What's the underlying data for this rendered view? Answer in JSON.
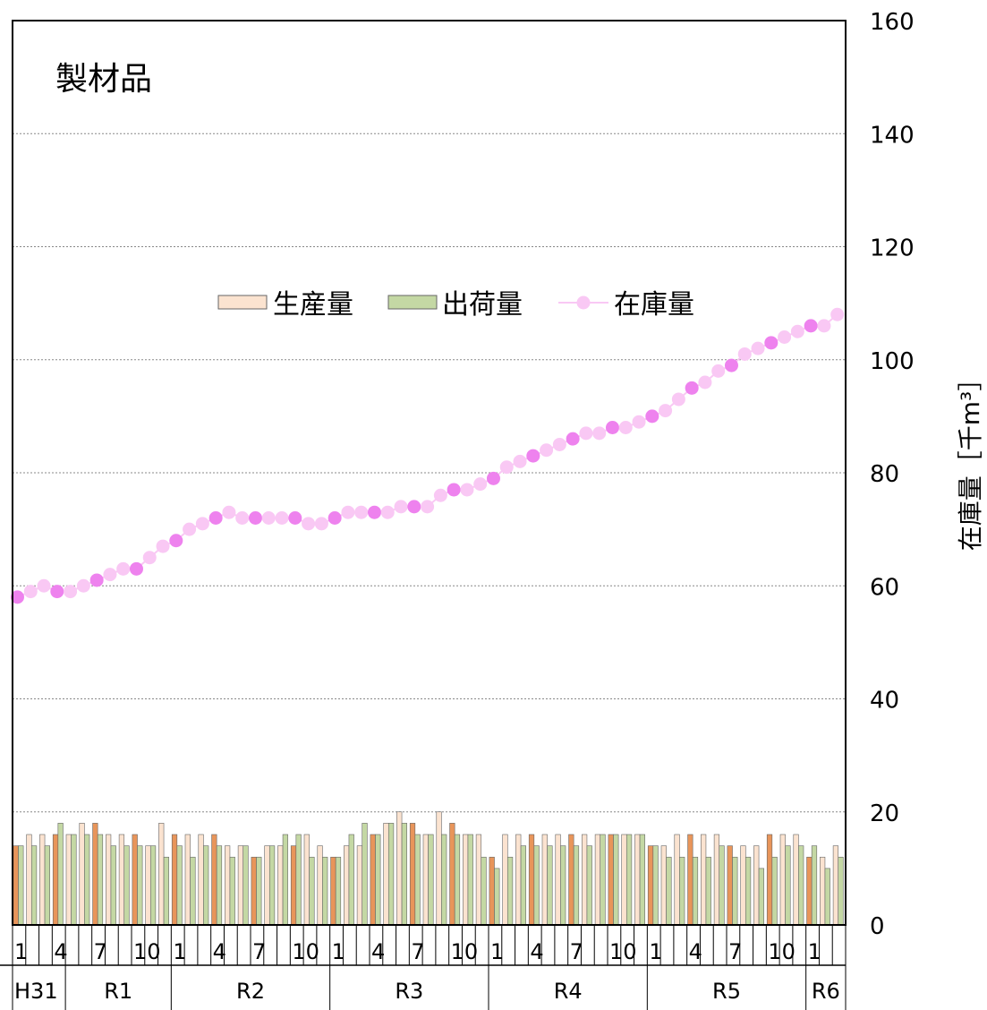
{
  "chart_data": {
    "type": "bar",
    "title": "製材品",
    "ylabel": "在庫量［千m³］",
    "ylim": [
      0,
      160
    ],
    "yticks": [
      "0",
      "20",
      "40",
      "60",
      "80",
      "100",
      "120",
      "140",
      "160"
    ],
    "grid": true,
    "legend_position": "center",
    "month_ticks": [
      "1",
      "4",
      "7",
      "10"
    ],
    "eras": [
      {
        "label": "H31",
        "months": 4
      },
      {
        "label": "R1",
        "months": 8
      },
      {
        "label": "R2",
        "months": 12
      },
      {
        "label": "R3",
        "months": 12
      },
      {
        "label": "R4",
        "months": 12
      },
      {
        "label": "R5",
        "months": 12
      },
      {
        "label": "R6",
        "months": 3
      }
    ],
    "series": [
      {
        "name": "生産量",
        "type": "bar",
        "values": [
          14,
          16,
          16,
          16,
          16,
          18,
          18,
          16,
          16,
          16,
          14,
          18,
          16,
          16,
          16,
          16,
          14,
          14,
          12,
          14,
          14,
          14,
          16,
          14,
          12,
          14,
          14,
          16,
          18,
          20,
          18,
          16,
          20,
          18,
          16,
          16,
          12,
          16,
          16,
          16,
          16,
          16,
          16,
          16,
          16,
          16,
          16,
          16,
          14,
          14,
          16,
          16,
          16,
          16,
          14,
          14,
          14,
          16,
          16,
          16,
          12,
          12,
          14
        ]
      },
      {
        "name": "出荷量",
        "type": "bar",
        "values": [
          14,
          14,
          14,
          18,
          16,
          16,
          16,
          14,
          14,
          14,
          14,
          12,
          14,
          12,
          14,
          14,
          12,
          14,
          12,
          14,
          16,
          16,
          12,
          12,
          12,
          16,
          18,
          16,
          18,
          18,
          16,
          16,
          16,
          16,
          16,
          12,
          10,
          12,
          14,
          14,
          14,
          14,
          14,
          14,
          16,
          16,
          16,
          16,
          14,
          12,
          12,
          12,
          12,
          14,
          12,
          12,
          10,
          12,
          14,
          14,
          14,
          10,
          12
        ]
      },
      {
        "name": "在庫量",
        "type": "line",
        "values": [
          58,
          59,
          60,
          59,
          59,
          60,
          61,
          62,
          63,
          63,
          65,
          67,
          68,
          70,
          71,
          72,
          73,
          72,
          72,
          72,
          72,
          72,
          71,
          71,
          72,
          73,
          73,
          73,
          73,
          74,
          74,
          74,
          76,
          77,
          77,
          78,
          79,
          81,
          82,
          83,
          84,
          85,
          86,
          87,
          87,
          88,
          88,
          89,
          90,
          91,
          93,
          95,
          96,
          98,
          99,
          101,
          102,
          103,
          104,
          105,
          106,
          106,
          108
        ]
      }
    ]
  },
  "colors": {
    "production_highlight": "#E8955A",
    "production": "#FBE3D0",
    "shipment": "#C4D8A4",
    "inventory_highlight": "#EE82EE",
    "inventory": "#F9C8F4",
    "grid": "#888888",
    "axis": "#000000"
  }
}
